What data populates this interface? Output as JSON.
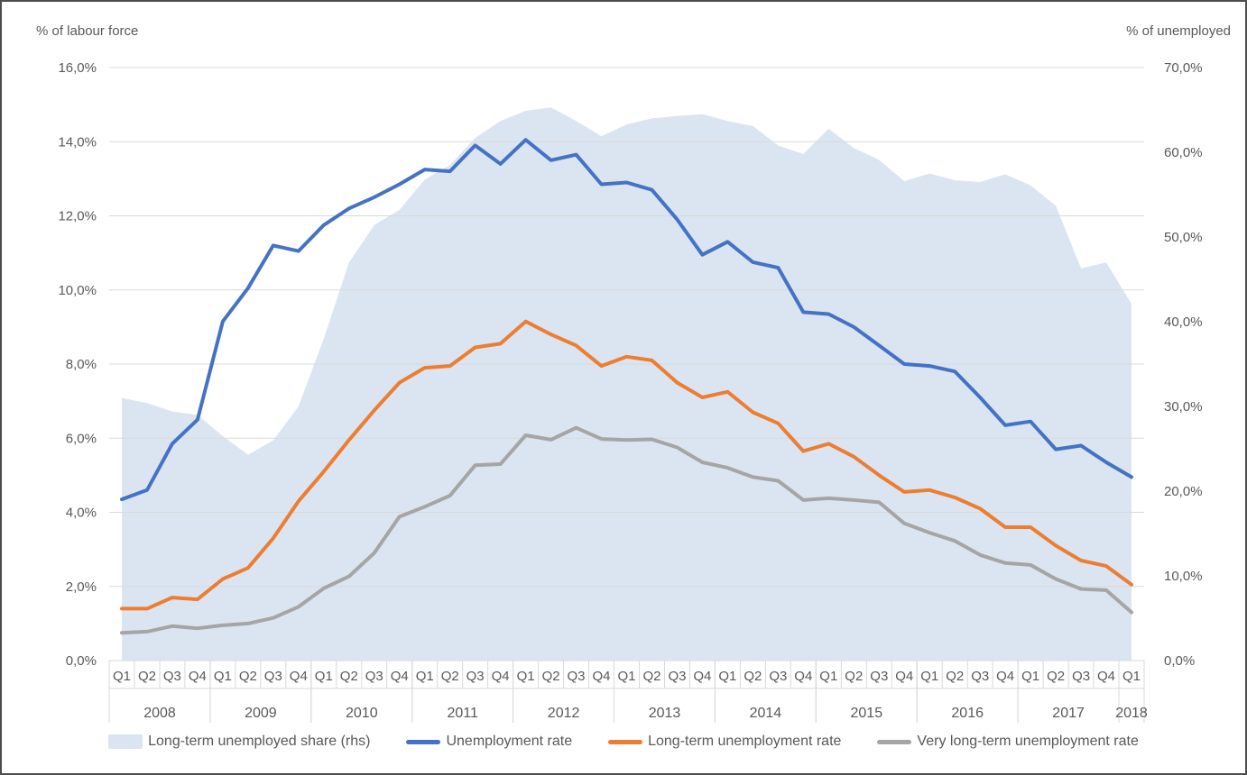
{
  "header": {
    "left_axis_title": "% of labour force",
    "right_axis_title": "% of unemployed"
  },
  "colors": {
    "area_fill": "#dbe5f2",
    "line_blue": "#4472c4",
    "line_orange": "#ed7d31",
    "line_gray": "#a5a5a5",
    "gridline": "#d9d9d9",
    "axis_text": "#595959",
    "axis_table_line": "#d9d9d9"
  },
  "legend": {
    "items": [
      {
        "key": "long-term-unemployed-share",
        "label": "Long-term unemployed share (rhs)",
        "swatch": "area",
        "color": "#dbe5f2"
      },
      {
        "key": "unemployment-rate",
        "label": "Unemployment rate",
        "swatch": "line",
        "color": "#4472c4"
      },
      {
        "key": "long-term-unemployment-rate",
        "label": "Long-term unemployment rate",
        "swatch": "line",
        "color": "#ed7d31"
      },
      {
        "key": "very-long-term-unemployment-rate",
        "label": "Very long-term unemployment rate",
        "swatch": "line",
        "color": "#a5a5a5"
      }
    ]
  },
  "chart_data": {
    "type": "combo-area-line",
    "grid": "horizontal",
    "legend_position": "bottom",
    "quarter_labels": [
      "Q1",
      "Q2",
      "Q3",
      "Q4"
    ],
    "years": [
      {
        "label": "2008",
        "count": 4
      },
      {
        "label": "2009",
        "count": 4
      },
      {
        "label": "2010",
        "count": 4
      },
      {
        "label": "2011",
        "count": 4
      },
      {
        "label": "2012",
        "count": 4
      },
      {
        "label": "2013",
        "count": 4
      },
      {
        "label": "2014",
        "count": 4
      },
      {
        "label": "2015",
        "count": 4
      },
      {
        "label": "2016",
        "count": 4
      },
      {
        "label": "2017",
        "count": 4
      },
      {
        "label": "2018",
        "count": 1
      }
    ],
    "left_axis": {
      "title": "% of labour force",
      "min": 0,
      "max": 16,
      "tick_values": [
        0,
        2,
        4,
        6,
        8,
        10,
        12,
        14,
        16
      ],
      "tick_labels": [
        "0,0%",
        "2,0%",
        "4,0%",
        "6,0%",
        "8,0%",
        "10,0%",
        "12,0%",
        "14,0%",
        "16,0%"
      ]
    },
    "right_axis": {
      "title": "% of unemployed",
      "min": 0,
      "max": 70,
      "tick_values": [
        0,
        10,
        20,
        30,
        40,
        50,
        60,
        70
      ],
      "tick_labels": [
        "0,0%",
        "10,0%",
        "20,0%",
        "30,0%",
        "40,0%",
        "50,0%",
        "60,0%",
        "70,0%"
      ]
    },
    "series": [
      {
        "key": "long-term-unemployed-share",
        "name": "Long-term unemployed share (rhs)",
        "type": "area",
        "axis": "right",
        "color": "#dbe5f2",
        "values": [
          31.0,
          30.4,
          29.4,
          29.0,
          26.5,
          24.3,
          26.0,
          30.0,
          38.0,
          47.0,
          51.4,
          53.2,
          56.8,
          58.5,
          61.7,
          63.7,
          64.9,
          65.3,
          63.7,
          61.9,
          63.3,
          64.0,
          64.3,
          64.5,
          63.7,
          63.1,
          60.8,
          59.8,
          62.8,
          60.5,
          59.1,
          56.6,
          57.5,
          56.7,
          56.5,
          57.4,
          56.1,
          53.7,
          46.3,
          47.0,
          42.1
        ]
      },
      {
        "key": "unemployment-rate",
        "name": "Unemployment rate",
        "type": "line",
        "axis": "left",
        "color": "#4472c4",
        "values": [
          4.35,
          4.6,
          5.85,
          6.5,
          9.15,
          10.05,
          11.2,
          11.05,
          11.75,
          12.2,
          12.5,
          12.85,
          13.25,
          13.2,
          13.9,
          13.4,
          14.05,
          13.5,
          13.65,
          12.85,
          12.9,
          12.7,
          11.9,
          10.95,
          11.3,
          10.75,
          10.6,
          9.4,
          9.35,
          9.0,
          8.5,
          8.0,
          7.95,
          7.8,
          7.1,
          6.35,
          6.45,
          5.7,
          5.8,
          5.35,
          4.95
        ]
      },
      {
        "key": "long-term-unemployment-rate",
        "name": "Long-term unemployment rate",
        "type": "line",
        "axis": "left",
        "color": "#ed7d31",
        "values": [
          1.4,
          1.4,
          1.7,
          1.65,
          2.2,
          2.5,
          3.3,
          4.3,
          5.1,
          5.95,
          6.75,
          7.5,
          7.9,
          7.95,
          8.45,
          8.55,
          9.15,
          8.8,
          8.5,
          7.95,
          8.2,
          8.1,
          7.5,
          7.1,
          7.25,
          6.7,
          6.4,
          5.65,
          5.85,
          5.5,
          5.0,
          4.55,
          4.6,
          4.4,
          4.1,
          3.6,
          3.6,
          3.1,
          2.7,
          2.55,
          2.05
        ]
      },
      {
        "key": "very-long-term-unemployment-rate",
        "name": "Very long-term unemployment rate",
        "type": "line",
        "axis": "left",
        "color": "#a5a5a5",
        "values": [
          0.75,
          0.78,
          0.93,
          0.87,
          0.95,
          1.0,
          1.15,
          1.45,
          1.95,
          2.27,
          2.9,
          3.88,
          4.15,
          4.45,
          5.27,
          5.3,
          6.08,
          5.96,
          6.28,
          5.98,
          5.95,
          5.97,
          5.75,
          5.35,
          5.2,
          4.95,
          4.85,
          4.33,
          4.38,
          4.33,
          4.27,
          3.7,
          3.45,
          3.23,
          2.85,
          2.63,
          2.58,
          2.2,
          1.93,
          1.9,
          1.3
        ]
      }
    ]
  }
}
